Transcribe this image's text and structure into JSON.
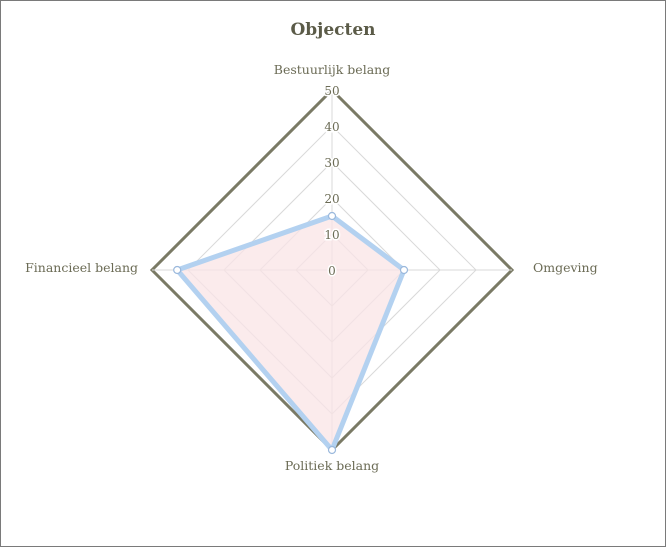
{
  "chart_data": {
    "type": "radar",
    "title": "Objecten",
    "axes": [
      "Bestuurlijk belang",
      "Omgeving",
      "Politiek belang",
      "Financieel belang"
    ],
    "ticks": [
      0,
      10,
      20,
      30,
      40,
      50
    ],
    "rlim": [
      0,
      50
    ],
    "grid": true,
    "series": [
      {
        "values": [
          15,
          20,
          50,
          43
        ]
      }
    ],
    "colors": {
      "outline": "#7a7a65",
      "grid": "#d9d9d9",
      "series_line": "#b3d1f0",
      "series_fill": "#f9e4e6",
      "text": "#6b6b55"
    }
  }
}
